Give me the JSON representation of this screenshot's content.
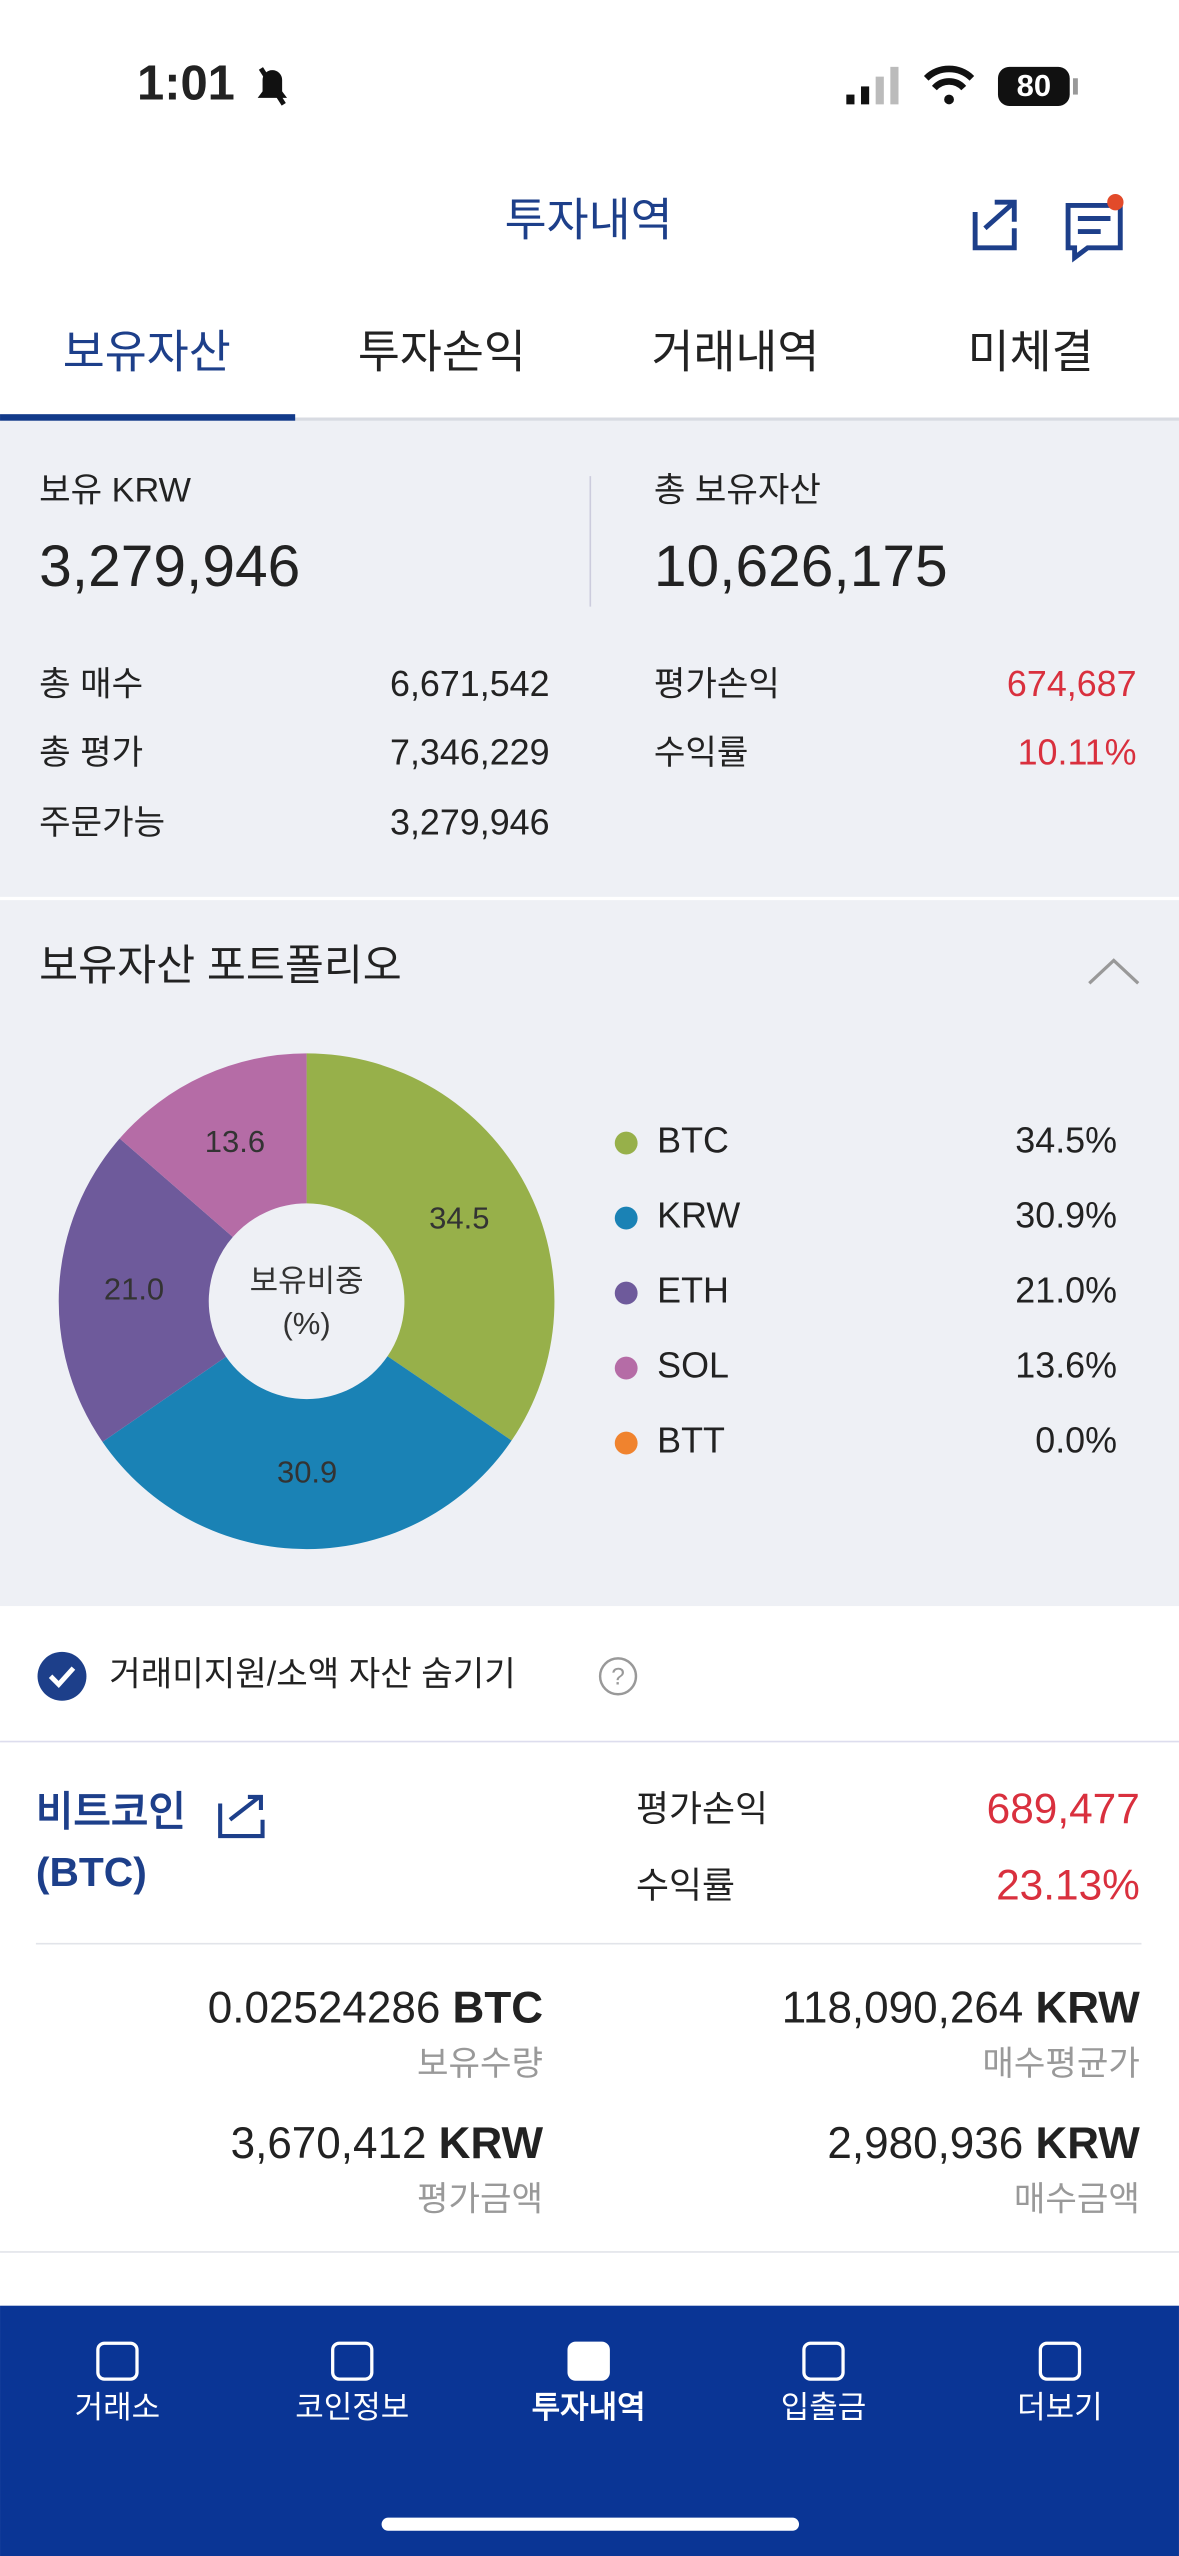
{
  "status": {
    "time": "1:01",
    "battery": "80"
  },
  "header": {
    "title": "투자내역"
  },
  "tabs": {
    "items": [
      "보유자산",
      "투자손익",
      "거래내역",
      "미체결"
    ],
    "active": 0
  },
  "summary": {
    "krw_label": "보유 KRW",
    "krw": "3,279,946",
    "total_label": "총 보유자산",
    "total": "10,626,175",
    "left": [
      [
        "총 매수",
        "6,671,542"
      ],
      [
        "총 평가",
        "7,346,229"
      ],
      [
        "주문가능",
        "3,279,946"
      ]
    ],
    "right": [
      [
        "평가손익",
        "674,687"
      ],
      [
        "수익률",
        "10.11%"
      ]
    ]
  },
  "portfolio": {
    "type": "donut",
    "title": "보유자산 포트폴리오",
    "center_label": [
      "보유비중",
      "(%)"
    ],
    "categories": [
      "BTC",
      "KRW",
      "ETH",
      "SOL",
      "BTT"
    ],
    "colors": [
      "#97b04a",
      "#1a82b5",
      "#6e5a9b",
      "#b56ca6",
      "#f0832e"
    ],
    "values": [
      34.5,
      30.9,
      21.0,
      13.6,
      0.0
    ],
    "value_labels": [
      "34.5%",
      "30.9%",
      "21.0%",
      "13.6%",
      "0.0%"
    ],
    "slice_labels": [
      "34.5",
      "30.9",
      "21.0",
      "13.6",
      null
    ]
  },
  "filter": {
    "label": "거래미지원/소액 자산 숨기기"
  },
  "coin": {
    "name": "비트코인",
    "ticker": "(BTC)",
    "pnl_label": "평가손익",
    "pnl": "689,477",
    "rate_label": "수익률",
    "rate": "23.13%",
    "cells": [
      {
        "value": "0.02524286",
        "unit": "BTC",
        "label": "보유수량"
      },
      {
        "value": "118,090,264",
        "unit": "KRW",
        "label": "매수평균가"
      },
      {
        "value": "3,670,412",
        "unit": "KRW",
        "label": "평가금액"
      },
      {
        "value": "2,980,936",
        "unit": "KRW",
        "label": "매수금액"
      }
    ]
  },
  "nav": {
    "items": [
      "거래소",
      "코인정보",
      "투자내역",
      "입출금",
      "더보기"
    ],
    "active": 2
  }
}
